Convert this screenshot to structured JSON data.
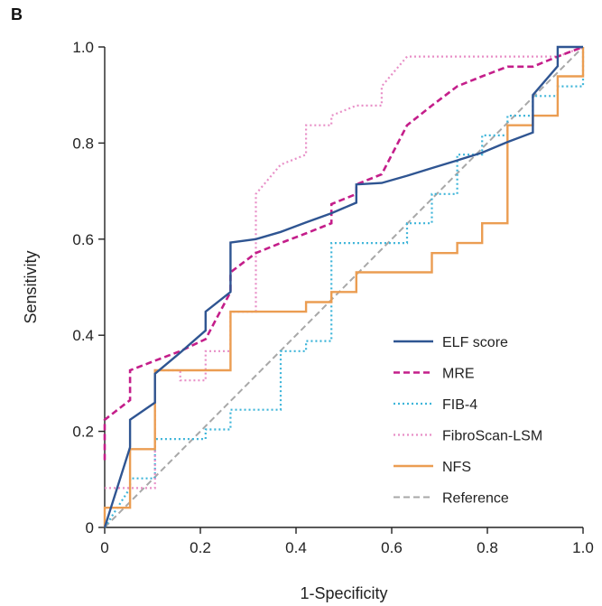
{
  "chart_data": {
    "type": "line",
    "panel_label": "B",
    "xlabel": "1-Specificity",
    "ylabel": "Sensitivity",
    "xlim": [
      0,
      1
    ],
    "ylim": [
      0,
      1
    ],
    "xticks": [
      "0",
      "0.2",
      "0.4",
      "0.6",
      "0.8",
      "1.0"
    ],
    "yticks": [
      "0",
      "0.2",
      "0.4",
      "0.6",
      "0.8",
      "1.0"
    ],
    "grid": false,
    "legend_position": "bottom-right",
    "series": [
      {
        "name": "ELF score",
        "color": "#2f5592",
        "dash": "solid",
        "points": [
          [
            0,
            0
          ],
          [
            0.053,
            0.167
          ],
          [
            0.053,
            0.224
          ],
          [
            0.105,
            0.26
          ],
          [
            0.105,
            0.32
          ],
          [
            0.158,
            0.364
          ],
          [
            0.211,
            0.41
          ],
          [
            0.211,
            0.449
          ],
          [
            0.263,
            0.49
          ],
          [
            0.263,
            0.593
          ],
          [
            0.316,
            0.6
          ],
          [
            0.368,
            0.615
          ],
          [
            0.421,
            0.635
          ],
          [
            0.474,
            0.654
          ],
          [
            0.526,
            0.676
          ],
          [
            0.526,
            0.714
          ],
          [
            0.579,
            0.717
          ],
          [
            0.632,
            0.732
          ],
          [
            0.684,
            0.748
          ],
          [
            0.737,
            0.764
          ],
          [
            0.789,
            0.78
          ],
          [
            0.842,
            0.802
          ],
          [
            0.895,
            0.822
          ],
          [
            0.895,
            0.9
          ],
          [
            0.947,
            0.96
          ],
          [
            0.947,
            1.0
          ],
          [
            1.0,
            1.0
          ]
        ]
      },
      {
        "name": "MRE",
        "color": "#c41e8a",
        "dash": "dashed",
        "points": [
          [
            0,
            0.14
          ],
          [
            0,
            0.224
          ],
          [
            0.053,
            0.265
          ],
          [
            0.053,
            0.327
          ],
          [
            0.105,
            0.347
          ],
          [
            0.158,
            0.367
          ],
          [
            0.211,
            0.392
          ],
          [
            0.263,
            0.49
          ],
          [
            0.263,
            0.531
          ],
          [
            0.316,
            0.571
          ],
          [
            0.368,
            0.592
          ],
          [
            0.421,
            0.612
          ],
          [
            0.474,
            0.633
          ],
          [
            0.474,
            0.673
          ],
          [
            0.526,
            0.694
          ],
          [
            0.526,
            0.714
          ],
          [
            0.579,
            0.735
          ],
          [
            0.632,
            0.837
          ],
          [
            0.684,
            0.878
          ],
          [
            0.737,
            0.918
          ],
          [
            0.789,
            0.939
          ],
          [
            0.842,
            0.959
          ],
          [
            0.895,
            0.959
          ],
          [
            0.947,
            0.98
          ],
          [
            1.0,
            1.0
          ]
        ]
      },
      {
        "name": "FIB-4",
        "color": "#3eb5d9",
        "dash": "dotted",
        "points": [
          [
            0,
            0
          ],
          [
            0.053,
            0.082
          ],
          [
            0.053,
            0.102
          ],
          [
            0.105,
            0.102
          ],
          [
            0.105,
            0.184
          ],
          [
            0.211,
            0.184
          ],
          [
            0.211,
            0.204
          ],
          [
            0.263,
            0.204
          ],
          [
            0.263,
            0.245
          ],
          [
            0.368,
            0.245
          ],
          [
            0.368,
            0.367
          ],
          [
            0.421,
            0.367
          ],
          [
            0.421,
            0.388
          ],
          [
            0.474,
            0.388
          ],
          [
            0.474,
            0.592
          ],
          [
            0.632,
            0.592
          ],
          [
            0.632,
            0.633
          ],
          [
            0.684,
            0.633
          ],
          [
            0.684,
            0.694
          ],
          [
            0.737,
            0.694
          ],
          [
            0.737,
            0.776
          ],
          [
            0.789,
            0.776
          ],
          [
            0.789,
            0.816
          ],
          [
            0.842,
            0.816
          ],
          [
            0.842,
            0.857
          ],
          [
            0.895,
            0.857
          ],
          [
            0.895,
            0.898
          ],
          [
            0.947,
            0.898
          ],
          [
            0.947,
            0.918
          ],
          [
            1.0,
            0.918
          ],
          [
            1.0,
            1.0
          ]
        ]
      },
      {
        "name": "FibroScan-LSM",
        "color": "#e88fc7",
        "dash": "dotted",
        "points": [
          [
            0,
            0.082
          ],
          [
            0.105,
            0.082
          ],
          [
            0.105,
            0.327
          ],
          [
            0.158,
            0.327
          ],
          [
            0.158,
            0.306
          ],
          [
            0.211,
            0.306
          ],
          [
            0.211,
            0.367
          ],
          [
            0.263,
            0.367
          ],
          [
            0.263,
            0.449
          ],
          [
            0.316,
            0.449
          ],
          [
            0.316,
            0.694
          ],
          [
            0.368,
            0.755
          ],
          [
            0.421,
            0.776
          ],
          [
            0.421,
            0.837
          ],
          [
            0.474,
            0.837
          ],
          [
            0.474,
            0.857
          ],
          [
            0.526,
            0.878
          ],
          [
            0.579,
            0.878
          ],
          [
            0.579,
            0.918
          ],
          [
            0.632,
            0.98
          ],
          [
            0.895,
            0.98
          ],
          [
            0.947,
            0.98
          ],
          [
            1.0,
            1.0
          ]
        ]
      },
      {
        "name": "NFS",
        "color": "#eb9d52",
        "dash": "solid",
        "points": [
          [
            0,
            0
          ],
          [
            0,
            0.041
          ],
          [
            0.053,
            0.041
          ],
          [
            0.053,
            0.163
          ],
          [
            0.105,
            0.163
          ],
          [
            0.105,
            0.327
          ],
          [
            0.263,
            0.327
          ],
          [
            0.263,
            0.449
          ],
          [
            0.421,
            0.449
          ],
          [
            0.421,
            0.469
          ],
          [
            0.474,
            0.469
          ],
          [
            0.474,
            0.49
          ],
          [
            0.526,
            0.49
          ],
          [
            0.526,
            0.531
          ],
          [
            0.684,
            0.531
          ],
          [
            0.684,
            0.571
          ],
          [
            0.737,
            0.571
          ],
          [
            0.737,
            0.592
          ],
          [
            0.789,
            0.592
          ],
          [
            0.789,
            0.633
          ],
          [
            0.842,
            0.633
          ],
          [
            0.842,
            0.837
          ],
          [
            0.895,
            0.837
          ],
          [
            0.895,
            0.857
          ],
          [
            0.947,
            0.857
          ],
          [
            0.947,
            0.939
          ],
          [
            1.0,
            0.939
          ],
          [
            1.0,
            1.0
          ]
        ]
      },
      {
        "name": "Reference",
        "color": "#a8a8a8",
        "dash": "dashed",
        "points": [
          [
            0,
            0
          ],
          [
            1,
            1
          ]
        ]
      }
    ]
  }
}
